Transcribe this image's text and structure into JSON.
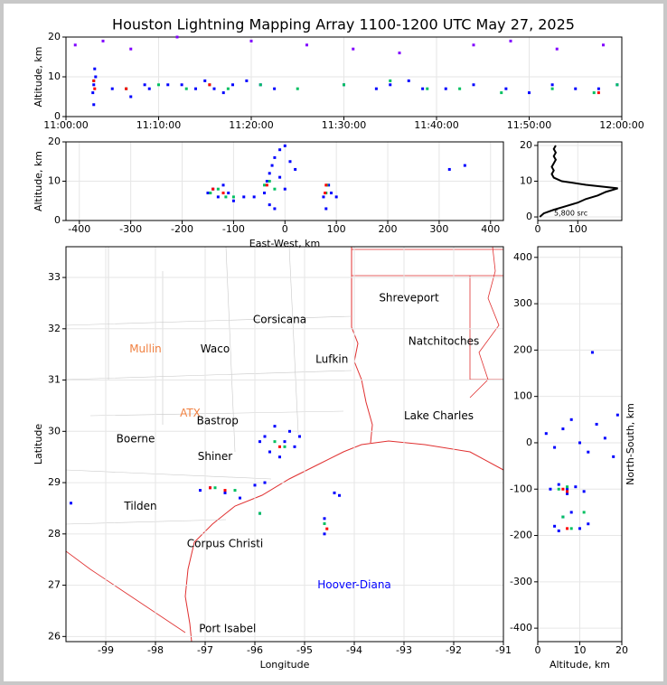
{
  "title": "Houston Lightning Mapping Array 1100-1200 UTC May 27, 2025",
  "chart_data": [
    {
      "type": "scatter",
      "ylabel": "Altitude, km",
      "xlim": [
        0,
        60
      ],
      "xticks": [
        {
          "value": 0,
          "label": "11:00:00"
        },
        {
          "value": 10,
          "label": "11:10:00"
        },
        {
          "value": 20,
          "label": "11:20:00"
        },
        {
          "value": 30,
          "label": "11:30:00"
        },
        {
          "value": 40,
          "label": "11:40:00"
        },
        {
          "value": 50,
          "label": "11:50:00"
        },
        {
          "value": 60,
          "label": "12:00:00"
        }
      ],
      "ylim": [
        0,
        20
      ],
      "yticks": [
        0,
        10,
        20
      ],
      "grid": true,
      "series": [
        {
          "color": "#8000ff",
          "x": [
            1,
            4,
            7,
            12,
            20,
            26,
            31,
            36,
            44,
            48,
            53,
            58
          ],
          "y": [
            18,
            19,
            17,
            20,
            19,
            18,
            17,
            16,
            18,
            19,
            17,
            18
          ]
        },
        {
          "color": "#0000ff",
          "x": [
            3,
            3,
            3.2,
            3.1,
            2.9,
            5,
            7,
            8.5,
            9,
            11,
            12.5,
            14,
            15,
            16,
            17,
            18,
            19.5,
            21,
            22.5,
            30,
            33.5,
            35,
            37,
            38.5,
            41,
            44,
            47.5,
            50,
            52.5,
            55,
            57.5,
            59.5
          ],
          "y": [
            3,
            8,
            10,
            12,
            6,
            7,
            5,
            8,
            7,
            8,
            8,
            7,
            9,
            7,
            6,
            8,
            9,
            8,
            7,
            8,
            7,
            8,
            9,
            7,
            7,
            8,
            7,
            6,
            8,
            7,
            7,
            8
          ]
        },
        {
          "color": "#00c060",
          "x": [
            3,
            6.5,
            10,
            13,
            15.5,
            17.5,
            21,
            25,
            30,
            35,
            39,
            42.5,
            47,
            52.5,
            57,
            59.5
          ],
          "y": [
            9,
            7,
            8,
            7,
            8,
            7,
            8,
            7,
            8,
            9,
            7,
            7,
            6,
            7,
            6,
            8
          ]
        },
        {
          "color": "#ff0000",
          "x": [
            3,
            3.1,
            6.5,
            15.5,
            57.5
          ],
          "y": [
            9,
            7,
            7,
            8,
            6
          ]
        }
      ]
    },
    {
      "type": "scatter",
      "xlabel": "East-West, km",
      "ylabel": "Altitude, km",
      "xlim": [
        -426,
        425
      ],
      "xticks": [
        -400,
        -300,
        -200,
        -100,
        0,
        100,
        200,
        300,
        400
      ],
      "ylim": [
        0,
        20
      ],
      "yticks": [
        0,
        10,
        20
      ],
      "grid": true,
      "series": [
        {
          "color": "#0000ff",
          "x": [
            -150,
            -140,
            -130,
            -120,
            -110,
            -100,
            -80,
            -60,
            -40,
            -35,
            -30,
            -25,
            -20,
            -10,
            0,
            10,
            20,
            -30,
            -20,
            -10,
            0,
            80,
            85,
            75,
            90,
            100,
            320,
            350
          ],
          "y": [
            7,
            8,
            6,
            9,
            7,
            5,
            6,
            6,
            7,
            10,
            12,
            14,
            16,
            18,
            19,
            15,
            13,
            4,
            3,
            11,
            8,
            3,
            9,
            6,
            7,
            6,
            13,
            14
          ]
        },
        {
          "color": "#00c060",
          "x": [
            -145,
            -130,
            -115,
            -100,
            -40,
            -30,
            -20,
            80,
            82
          ],
          "y": [
            7,
            8,
            6,
            6,
            9,
            10,
            8,
            7,
            9
          ]
        },
        {
          "color": "#ff0000",
          "x": [
            -140,
            -120,
            -35,
            78,
            80
          ],
          "y": [
            8,
            7,
            9,
            7,
            9
          ]
        }
      ]
    },
    {
      "type": "line",
      "annotation": "5,800 src",
      "xlim": [
        0,
        210
      ],
      "xticks": [
        0,
        100
      ],
      "ylim": [
        -1,
        21
      ],
      "yticks": [
        0,
        10,
        20
      ],
      "grid": true,
      "color": "#000000",
      "x": [
        5,
        15,
        40,
        70,
        100,
        120,
        150,
        170,
        200,
        120,
        60,
        40,
        35,
        40,
        35,
        40,
        45,
        40,
        45,
        40,
        45
      ],
      "y": [
        0,
        1,
        2,
        3,
        4,
        5,
        6,
        7,
        8,
        9,
        10,
        11,
        12,
        13,
        14,
        15,
        16,
        17,
        18,
        19,
        20
      ]
    },
    {
      "type": "scatter",
      "xlabel": "Longitude",
      "ylabel": "Latitude",
      "xlim": [
        -99.8,
        -91
      ],
      "xticks": [
        -99,
        -98,
        -97,
        -96,
        -95,
        -94,
        -93,
        -92,
        -91
      ],
      "ylim": [
        25.9,
        33.6
      ],
      "yticks": [
        26,
        27,
        28,
        29,
        30,
        31,
        32,
        33
      ],
      "grid": true,
      "annotations": [
        {
          "text": "Mullin",
          "x": -98.2,
          "y": 31.6,
          "color": "#f08040"
        },
        {
          "text": "Waco",
          "x": -96.8,
          "y": 31.6,
          "color": "#000000"
        },
        {
          "text": "Corsicana",
          "x": -95.5,
          "y": 32.17,
          "color": "#000000"
        },
        {
          "text": "Shreveport",
          "x": -92.9,
          "y": 32.6,
          "color": "#000000"
        },
        {
          "text": "Natchitoches",
          "x": -92.2,
          "y": 31.75,
          "color": "#000000"
        },
        {
          "text": "Lufkin",
          "x": -94.45,
          "y": 31.4,
          "color": "#000000"
        },
        {
          "text": "Lake Charles",
          "x": -92.3,
          "y": 30.3,
          "color": "#000000"
        },
        {
          "text": "Boerne",
          "x": -98.4,
          "y": 29.85,
          "color": "#000000"
        },
        {
          "text": "Shiner",
          "x": -96.8,
          "y": 29.5,
          "color": "#000000"
        },
        {
          "text": "Tilden",
          "x": -98.3,
          "y": 28.53,
          "color": "#000000"
        },
        {
          "text": "Corpus Christi",
          "x": -96.6,
          "y": 27.8,
          "color": "#000000"
        },
        {
          "text": "Port Isabel",
          "x": -96.55,
          "y": 26.15,
          "color": "#000000"
        },
        {
          "text": "Hoover-Diana",
          "x": -94.0,
          "y": 27.0,
          "color": "#0000ff"
        },
        {
          "text": "ATX",
          "x": -97.3,
          "y": 30.35,
          "color": "#f08040"
        },
        {
          "text": "Bastrop",
          "x": -96.75,
          "y": 30.2,
          "color": "#000000"
        }
      ],
      "series": [
        {
          "color": "#0000ff",
          "x": [
            -95.8,
            -95.6,
            -95.4,
            -95.2,
            -95.7,
            -95.5,
            -95.3,
            -95.9,
            -95.1,
            -97.1,
            -96.9,
            -96.6,
            -96.3,
            -96.0,
            -95.8,
            -95.9,
            -94.6,
            -94.6,
            -94.4,
            -94.3,
            -99.7
          ],
          "y": [
            29.9,
            30.1,
            29.8,
            29.7,
            29.6,
            29.5,
            30.0,
            29.8,
            29.9,
            28.85,
            28.9,
            28.8,
            28.7,
            28.95,
            29.0,
            28.4,
            28.3,
            28.0,
            28.8,
            28.75,
            28.6
          ]
        },
        {
          "color": "#00c060",
          "x": [
            -95.6,
            -95.4,
            -96.8,
            -96.4,
            -95.9,
            -94.6
          ],
          "y": [
            29.8,
            29.7,
            28.9,
            28.85,
            28.4,
            28.2
          ]
        },
        {
          "color": "#ff0000",
          "x": [
            -95.5,
            -96.9,
            -96.6,
            -94.55
          ],
          "y": [
            29.7,
            28.9,
            28.85,
            28.1
          ]
        }
      ]
    },
    {
      "type": "scatter",
      "xlabel": "Altitude, km",
      "ylabel": "North-South, km",
      "xlim": [
        0,
        20
      ],
      "xticks": [
        0,
        10,
        20
      ],
      "ylim": [
        -429,
        423
      ],
      "yticks": [
        -400,
        -300,
        -200,
        -100,
        0,
        100,
        200,
        300,
        400
      ],
      "grid": true,
      "series": [
        {
          "color": "#0000ff",
          "x": [
            2,
            4,
            6,
            8,
            10,
            12,
            14,
            16,
            18,
            19,
            3,
            5,
            7,
            9,
            11,
            6,
            8,
            4,
            10,
            12,
            5,
            7,
            13
          ],
          "y": [
            20,
            -10,
            30,
            50,
            0,
            -20,
            40,
            10,
            -30,
            60,
            -100,
            -90,
            -110,
            -95,
            -105,
            -160,
            -150,
            -180,
            -185,
            -175,
            -190,
            -100,
            195
          ]
        },
        {
          "color": "#00c060",
          "x": [
            5,
            6,
            8,
            7,
            11
          ],
          "y": [
            -100,
            -160,
            -185,
            -95,
            -150
          ]
        },
        {
          "color": "#ff0000",
          "x": [
            6,
            7,
            7
          ],
          "y": [
            -100,
            -105,
            -185
          ]
        }
      ]
    }
  ]
}
